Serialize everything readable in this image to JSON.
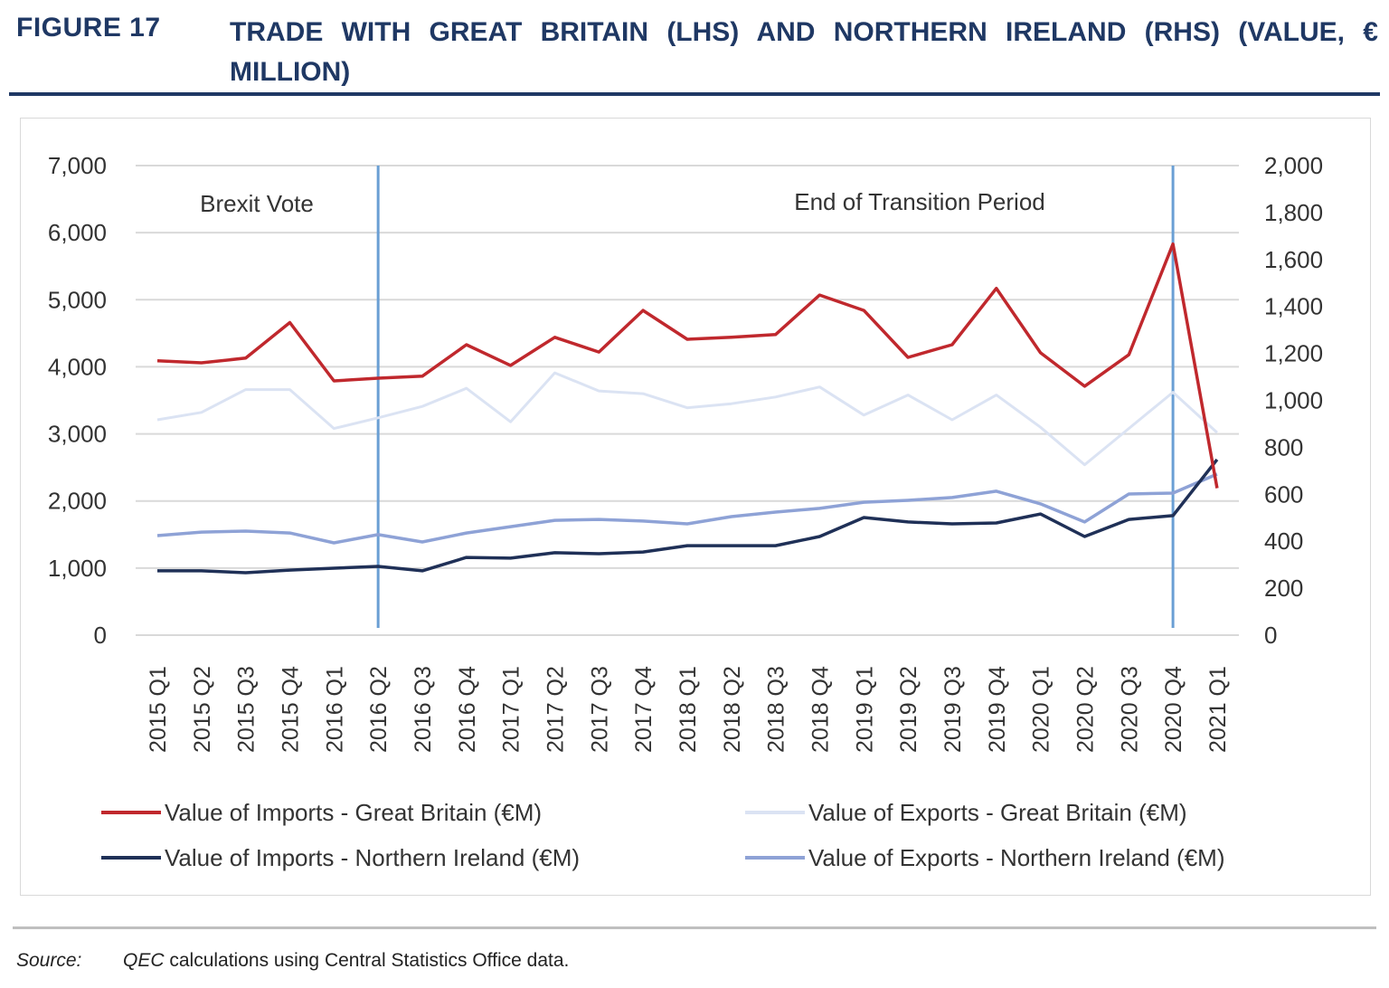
{
  "figure_label": "FIGURE 17",
  "figure_title": "TRADE WITH GREAT BRITAIN (LHS) AND NORTHERN IRELAND (RHS) (VALUE, € MILLION)",
  "source": {
    "label": "Source:",
    "emphasis": "QEC",
    "text": " calculations using Central Statistics Office data."
  },
  "chart_data": {
    "type": "line",
    "title": "",
    "xlabel": "",
    "ylabel": "",
    "y_left": {
      "range": [
        0,
        7000
      ],
      "ticks": [
        "0",
        "1,000",
        "2,000",
        "3,000",
        "4,000",
        "5,000",
        "6,000",
        "7,000"
      ]
    },
    "y_right": {
      "range": [
        0,
        2000
      ],
      "ticks": [
        "0",
        "200",
        "400",
        "600",
        "800",
        "1,000",
        "1,200",
        "1,400",
        "1,600",
        "1,800",
        "2,000"
      ]
    },
    "grid": true,
    "legend_position": "bottom",
    "categories": [
      "2015 Q1",
      "2015 Q2",
      "2015 Q3",
      "2015 Q4",
      "2016 Q1",
      "2016 Q2",
      "2016 Q3",
      "2016 Q4",
      "2017 Q1",
      "2017 Q2",
      "2017 Q3",
      "2017 Q4",
      "2018 Q1",
      "2018 Q2",
      "2018 Q3",
      "2018 Q4",
      "2019 Q1",
      "2019 Q2",
      "2019 Q3",
      "2019 Q4",
      "2020 Q1",
      "2020 Q2",
      "2020 Q3",
      "2020 Q4",
      "2021 Q1"
    ],
    "annotations": [
      {
        "text": "Brexit Vote",
        "category": "2016 Q2"
      },
      {
        "text": "End of Transition Period",
        "category": "2020 Q4"
      }
    ],
    "series": [
      {
        "name": "Value of Imports - Great Britain (€M)",
        "axis": "left",
        "color": "#c0282d",
        "values": [
          4090,
          4060,
          4130,
          4660,
          3790,
          3830,
          3860,
          4330,
          4020,
          4440,
          4220,
          4840,
          4410,
          4440,
          4480,
          5070,
          4840,
          4140,
          4330,
          5170,
          4210,
          3710,
          4180,
          5830,
          2190
        ]
      },
      {
        "name": "Value of Exports - Great Britain (€M)",
        "axis": "left",
        "color": "#dbe3f3",
        "values": [
          3210,
          3320,
          3660,
          3660,
          3080,
          3240,
          3410,
          3680,
          3180,
          3910,
          3640,
          3600,
          3390,
          3450,
          3550,
          3700,
          3280,
          3580,
          3210,
          3580,
          3100,
          2540,
          3080,
          3620,
          3020
        ]
      },
      {
        "name": "Value of Imports - Northern Ireland (€M)",
        "axis": "right",
        "color": "#1f3057",
        "values": [
          274,
          274,
          266,
          277,
          285,
          293,
          274,
          331,
          328,
          351,
          347,
          354,
          381,
          381,
          381,
          420,
          501,
          482,
          474,
          478,
          516,
          420,
          493,
          509,
          748
        ]
      },
      {
        "name": "Value of Exports - Northern Ireland (€M)",
        "axis": "right",
        "color": "#8ea2d6",
        "values": [
          424,
          439,
          443,
          435,
          393,
          428,
          397,
          435,
          462,
          489,
          493,
          486,
          474,
          505,
          524,
          540,
          566,
          574,
          586,
          613,
          559,
          482,
          601,
          605,
          686
        ]
      }
    ],
    "marker_line_color": "#6a9fd4"
  }
}
